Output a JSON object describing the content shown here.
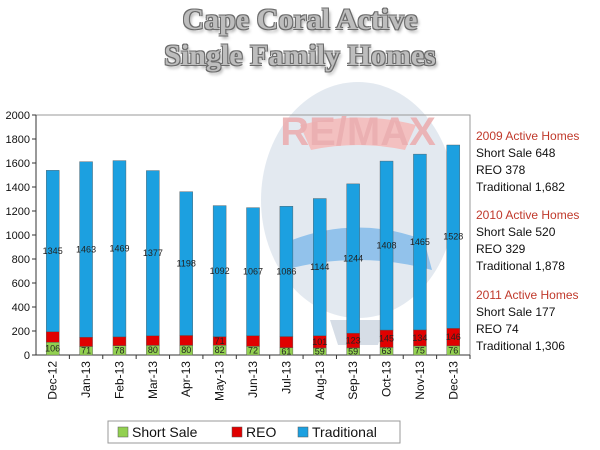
{
  "title": {
    "line1": "Cape Coral Active",
    "line2": "Single Family Homes"
  },
  "logo": {
    "text": "RE/MAX",
    "colors": {
      "red": "#e03a3e",
      "blue": "#1a4b9b",
      "balloon_blue": "#5aa9e6"
    }
  },
  "colors": {
    "short_sale": "#92d050",
    "reo": "#e00000",
    "traditional": "#1ca0e0",
    "side_heading": "#c0392b"
  },
  "side_panel": [
    {
      "heading": "2009 Active Homes",
      "lines": [
        "Short Sale 648",
        "REO 378",
        "Traditional 1,682"
      ]
    },
    {
      "heading": "2010 Active Homes",
      "lines": [
        "Short Sale 520",
        "REO 329",
        "Traditional 1,878"
      ]
    },
    {
      "heading": "2011 Active Homes",
      "lines": [
        "Short Sale 177",
        "REO 74",
        "Traditional 1,306"
      ]
    }
  ],
  "chart_data": {
    "type": "bar",
    "stacked": true,
    "categories": [
      "Dec-12",
      "Jan-13",
      "Feb-13",
      "Mar-13",
      "Apr-13",
      "May-13",
      "Jun-13",
      "Jul-13",
      "Aug-13",
      "Sep-13",
      "Oct-13",
      "Nov-13",
      "Dec-13"
    ],
    "series": [
      {
        "name": "Short Sale",
        "values": [
          106,
          71,
          78,
          80,
          80,
          82,
          72,
          61,
          59,
          59,
          63,
          75,
          76
        ]
      },
      {
        "name": "REO",
        "values": [
          88,
          77,
          73,
          80,
          83,
          71,
          89,
          93,
          101,
          123,
          145,
          134,
          146
        ]
      },
      {
        "name": "Traditional",
        "values": [
          1345,
          1463,
          1469,
          1377,
          1198,
          1092,
          1067,
          1086,
          1144,
          1244,
          1408,
          1465,
          1528
        ]
      }
    ],
    "series_labels": {
      "Short Sale": [
        "106",
        "71",
        "78",
        "80",
        "80",
        "82",
        "72",
        "61",
        "59",
        "59",
        "63",
        "75",
        "76"
      ],
      "REO": [
        "",
        "",
        "",
        "",
        "",
        "71",
        "",
        "",
        "101",
        "123",
        "145",
        "134",
        "146"
      ],
      "Traditional": [
        "1345",
        "1463",
        "1469",
        "1377",
        "1198",
        "1092",
        "1067",
        "1086",
        "1144",
        "1244",
        "1408",
        "1465",
        "1528"
      ]
    },
    "yticks": [
      "0",
      "200",
      "400",
      "600",
      "800",
      "1000",
      "1200",
      "1400",
      "1600",
      "1800",
      "2000"
    ],
    "ylim": [
      0,
      2000
    ],
    "grid": false,
    "legend_position": "bottom"
  }
}
